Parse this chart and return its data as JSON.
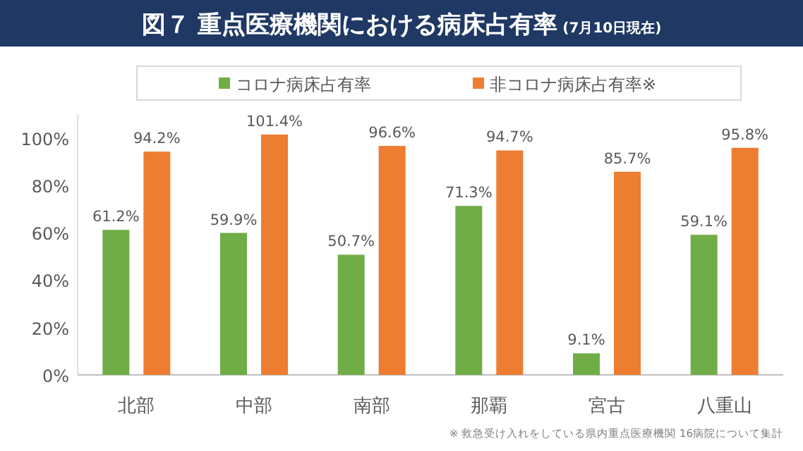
{
  "chart_data": {
    "type": "bar",
    "title": "図７ 重点医療機関における病床占有率",
    "subtitle": "(7月10日現在)",
    "categories": [
      "北部",
      "中部",
      "南部",
      "那覇",
      "宮古",
      "八重山"
    ],
    "series": [
      {
        "name": "コロナ病床占有率",
        "color": "#70ad47",
        "values": [
          61.2,
          59.9,
          50.7,
          71.3,
          9.1,
          59.1
        ],
        "value_labels": [
          "61.2%",
          "59.9%",
          "50.7%",
          "71.3%",
          "9.1%",
          "59.1%"
        ]
      },
      {
        "name": "非コロナ病床占有率※",
        "color": "#ed7d31",
        "values": [
          94.2,
          101.4,
          96.6,
          94.7,
          85.7,
          95.8
        ],
        "value_labels": [
          "94.2%",
          "101.4%",
          "96.6%",
          "94.7%",
          "85.7%",
          "95.8%"
        ]
      }
    ],
    "ylim": [
      0,
      110
    ],
    "yticks": [
      {
        "value": 0,
        "label": "0%"
      },
      {
        "value": 20,
        "label": "20%"
      },
      {
        "value": 40,
        "label": "40%"
      },
      {
        "value": 60,
        "label": "60%"
      },
      {
        "value": 80,
        "label": "80%"
      },
      {
        "value": 100,
        "label": "100%"
      }
    ],
    "legend": "top",
    "grid": false,
    "annotations": [
      "※ 救急受け入れをしている県内重点医療機関 16病院について集計"
    ]
  }
}
